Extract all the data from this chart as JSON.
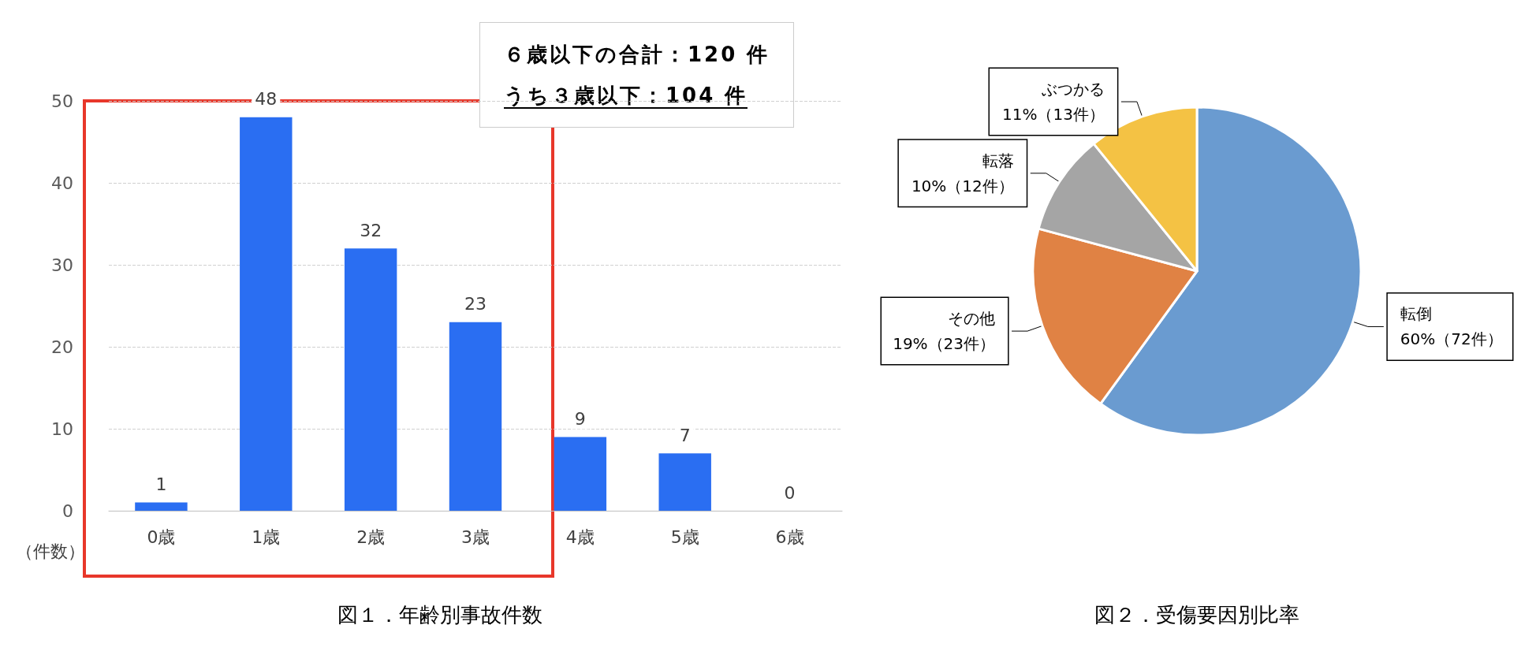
{
  "chart_data": [
    {
      "type": "bar",
      "title": "図１．年齢別事故件数",
      "ylabel": "（件数）",
      "categories": [
        "0歳",
        "1歳",
        "2歳",
        "3歳",
        "4歳",
        "5歳",
        "6歳"
      ],
      "values": [
        1,
        48,
        32,
        23,
        9,
        7,
        0
      ],
      "color": "#2a6ef2",
      "ylim": [
        0,
        50
      ],
      "yticks": [
        0,
        10,
        20,
        30,
        40,
        50
      ],
      "grid": "y",
      "data_labels": true,
      "annotations": [
        "６歳以下の合計：120 件",
        "うち３歳以下：104 件"
      ]
    },
    {
      "type": "pie",
      "title": "図２．受傷要因別比率",
      "categories": [
        "転倒",
        "その他",
        "転落",
        "ぶつかる"
      ],
      "values": [
        72,
        23,
        12,
        13
      ],
      "value_labels": [
        "60%（72件）",
        "19%（23件）",
        "10%（12件）",
        "11%（13件）"
      ],
      "colors": [
        "#6a9bd0",
        "#e08244",
        "#a5a5a5",
        "#f4c244"
      ]
    }
  ]
}
